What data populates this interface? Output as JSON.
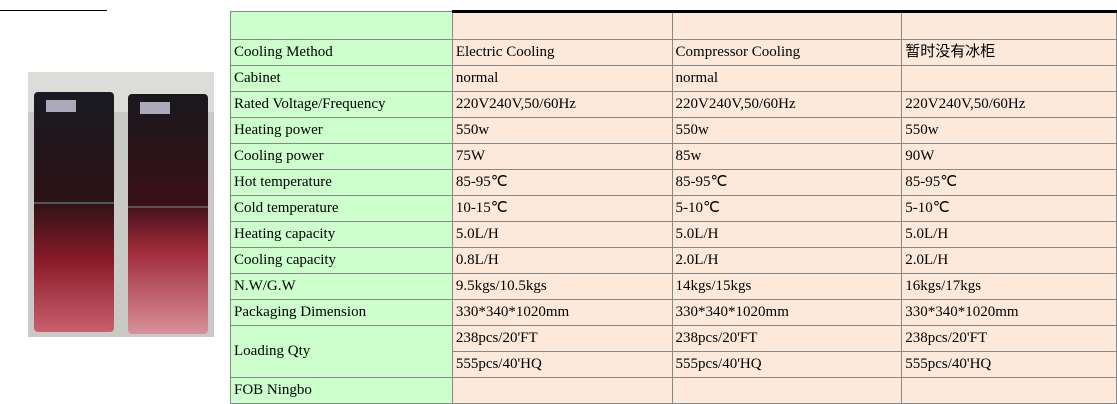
{
  "table": {
    "rows": [
      {
        "label": "Cooling Method",
        "values": [
          "Electric Cooling",
          "Compressor Cooling",
          "暂时没有冰柜"
        ]
      },
      {
        "label": "Cabinet",
        "values": [
          "normal",
          "normal",
          null
        ]
      },
      {
        "label": "Rated Voltage/Frequency",
        "values": [
          "220V240V,50/60Hz",
          "220V240V,50/60Hz",
          "220V240V,50/60Hz"
        ]
      },
      {
        "label": "Heating power",
        "values": [
          "550w",
          "550w",
          "550w"
        ]
      },
      {
        "label": "Cooling power",
        "values": [
          "75W",
          "85w",
          "90W"
        ]
      },
      {
        "label": "Hot temperature",
        "values": [
          "85-95℃",
          "85-95℃",
          "85-95℃"
        ]
      },
      {
        "label": "Cold temperature",
        "values": [
          "10-15℃",
          "5-10℃",
          "5-10℃"
        ]
      },
      {
        "label": "Heating capacity",
        "values": [
          "5.0L/H",
          "5.0L/H",
          "5.0L/H"
        ]
      },
      {
        "label": "Cooling capacity",
        "values": [
          "0.8L/H",
          "2.0L/H",
          "2.0L/H"
        ]
      },
      {
        "label": "N.W/G.W",
        "values": [
          "9.5kgs/10.5kgs",
          "14kgs/15kgs",
          "16kgs/17kgs"
        ]
      },
      {
        "label": "Packaging Dimension",
        "values": [
          "330*340*1020mm",
          "330*340*1020mm",
          "330*340*1020mm"
        ]
      },
      {
        "label": "Loading Qty",
        "values": [
          [
            "238pcs/20'FT",
            "555pcs/40'HQ"
          ],
          [
            "238pcs/20'FT",
            "555pcs/40'HQ"
          ],
          [
            "238pcs/20'FT",
            "555pcs/40'HQ"
          ]
        ]
      },
      {
        "label": "FOB Ningbo",
        "values": [
          null,
          null,
          null
        ]
      }
    ]
  }
}
